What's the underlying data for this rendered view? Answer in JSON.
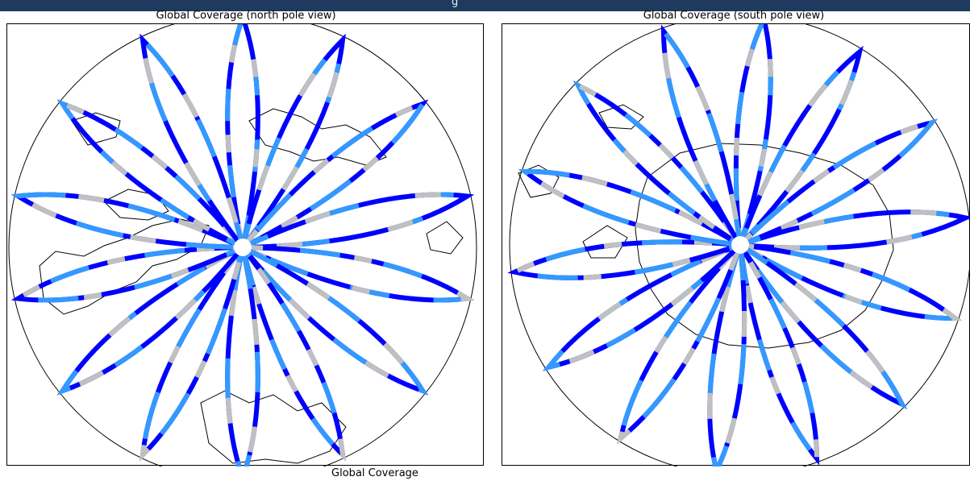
{
  "window": {
    "title_fragment": "g"
  },
  "panels": [
    {
      "title": "Global Coverage (north pole view)",
      "pole": "north",
      "lobe_count": 14,
      "track_colors": [
        "#0000ff",
        "#3399ff",
        "#c0c0c0"
      ],
      "landmass": "arctic coastlines"
    },
    {
      "title": "Global Coverage (south pole view)",
      "pole": "south",
      "lobe_count": 14,
      "track_colors": [
        "#0000ff",
        "#3399ff",
        "#c0c0c0"
      ],
      "landmass": "antarctic coastline"
    }
  ],
  "footer": {
    "caption": "Global Coverage"
  },
  "colors": {
    "frame_bg": "#1e3a5c",
    "track_dark_blue": "#0000ff",
    "track_light_blue": "#3399ff",
    "track_gray": "#c0c0c0",
    "coastline": "#000000"
  }
}
